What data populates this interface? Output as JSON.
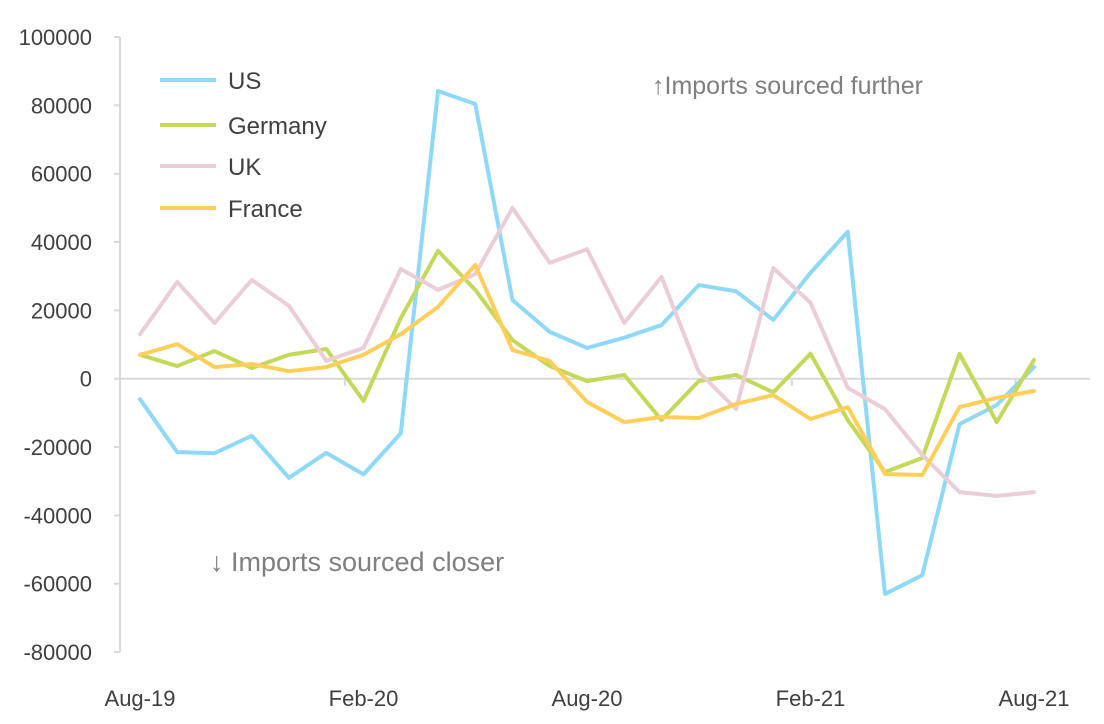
{
  "chart_data": {
    "type": "line",
    "title": "",
    "xlabel": "",
    "ylabel": "",
    "ylim": [
      -80000,
      100000
    ],
    "yticks": [
      "100000",
      "80000",
      "60000",
      "40000",
      "20000",
      "0",
      "-20000",
      "-40000",
      "-60000",
      "-80000"
    ],
    "ytick_values": [
      100000,
      80000,
      60000,
      40000,
      20000,
      0,
      -20000,
      -40000,
      -60000,
      -80000
    ],
    "x": [
      "Aug-19",
      "Sep-19",
      "Oct-19",
      "Nov-19",
      "Dec-19",
      "Jan-20",
      "Feb-20",
      "Mar-20",
      "Apr-20",
      "May-20",
      "Jun-20",
      "Jul-20",
      "Aug-20",
      "Sep-20",
      "Oct-20",
      "Nov-20",
      "Dec-20",
      "Jan-21",
      "Feb-21",
      "Mar-21",
      "Apr-21",
      "May-21",
      "Jun-21",
      "Jul-21",
      "Aug-21"
    ],
    "xtick_labels": [
      {
        "index": 0,
        "label": "Aug-19"
      },
      {
        "index": 6,
        "label": "Feb-20"
      },
      {
        "index": 12,
        "label": "Aug-20"
      },
      {
        "index": 18,
        "label": "Feb-21"
      },
      {
        "index": 24,
        "label": "Aug-21"
      }
    ],
    "legend_placement": "top-left",
    "series": [
      {
        "name": "US",
        "color": "#8fd9f8",
        "values": [
          -6000,
          -21500,
          -21800,
          -16700,
          -29000,
          -21700,
          -28000,
          -16000,
          84200,
          80400,
          23000,
          13700,
          9000,
          12000,
          15700,
          27400,
          25600,
          17200,
          31000,
          43000,
          -63000,
          -57500,
          -13300,
          -7700,
          3400
        ]
      },
      {
        "name": "Germany",
        "color": "#c5d85a",
        "values": [
          7000,
          3700,
          8100,
          3100,
          7000,
          8700,
          -6500,
          17700,
          37400,
          26000,
          11300,
          3700,
          -700,
          1100,
          -12100,
          -700,
          1100,
          -4000,
          7300,
          -12100,
          -27300,
          -23200,
          7300,
          -12700,
          5500
        ]
      },
      {
        "name": "UK",
        "color": "#ebcdd6",
        "values": [
          13000,
          28300,
          16300,
          28900,
          21300,
          5200,
          9000,
          32100,
          26000,
          30600,
          50000,
          33900,
          37900,
          16300,
          29800,
          2000,
          -8900,
          32400,
          22200,
          -2700,
          -8900,
          -22300,
          -33200,
          -34300,
          -33200
        ]
      },
      {
        "name": "France",
        "color": "#ffcf5a",
        "values": [
          7000,
          10100,
          3400,
          4300,
          2200,
          3400,
          7000,
          13000,
          21000,
          33300,
          8400,
          5200,
          -6800,
          -12700,
          -11200,
          -11500,
          -7400,
          -4800,
          -11800,
          -8300,
          -27900,
          -28200,
          -8300,
          -5600,
          -3600
        ]
      }
    ],
    "annotations": [
      {
        "text": "↑Imports sourced further",
        "position": "top-right"
      },
      {
        "text": "↓ Imports sourced closer",
        "position": "bottom-left"
      }
    ]
  }
}
